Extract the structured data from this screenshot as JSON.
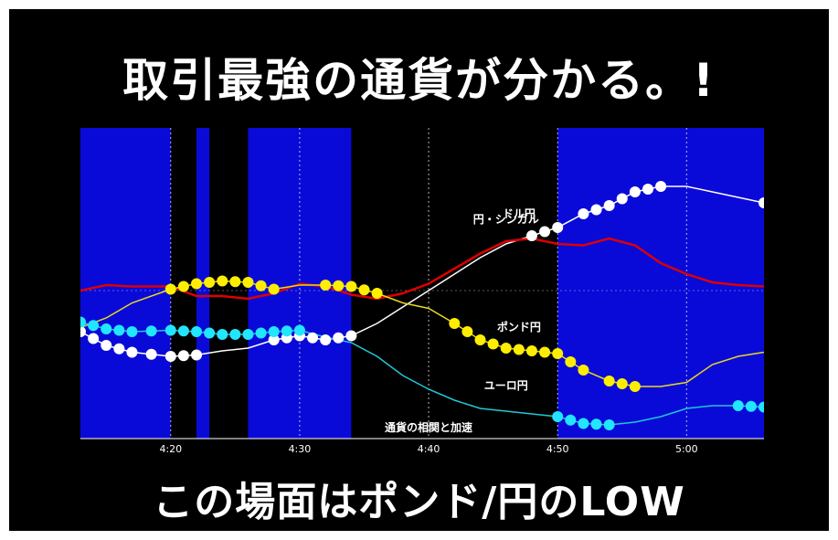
{
  "headline_top": "取引最強の通貨が分かる。!",
  "headline_bottom": "この場面はポンド/円のLOW",
  "colors": {
    "background": "#000000",
    "highlight": "#0a0ad8",
    "usdjpy": "#ffffff",
    "sgdjpy": "#dd0000",
    "gbpjpy": "#e8d820",
    "eurjpy": "#20c8d8",
    "marker_usdjpy": "#ffffff",
    "marker_gbpjpy": "#ffee00",
    "marker_eurjpy": "#22e5ff"
  },
  "chart_data": {
    "type": "line",
    "annotation": "通貨の相関と加速",
    "x_ticks": [
      "4:20",
      "4:30",
      "4:40",
      "4:50",
      "5:00"
    ],
    "xlim": [
      "4:13",
      "5:06"
    ],
    "y_axis": "unlabeled",
    "highlight_ranges": [
      [
        "4:13",
        "4:20"
      ],
      [
        "4:22",
        "4:23"
      ],
      [
        "4:26",
        "4:34"
      ],
      [
        "4:50",
        "5:06"
      ]
    ],
    "series": [
      {
        "name": "ドル円",
        "color": "#ffffff",
        "x": [
          "4:13",
          "4:15",
          "4:17",
          "4:20",
          "4:22",
          "4:24",
          "4:26",
          "4:28",
          "4:30",
          "4:32",
          "4:34",
          "4:36",
          "4:38",
          "4:40",
          "4:42",
          "4:44",
          "4:46",
          "4:48",
          "4:50",
          "4:52",
          "4:54",
          "4:56",
          "4:58",
          "5:00",
          "5:02",
          "5:04",
          "5:06"
        ],
        "y": [
          -0.3,
          -0.4,
          -0.45,
          -0.48,
          -0.47,
          -0.44,
          -0.42,
          -0.36,
          -0.33,
          -0.36,
          -0.33,
          -0.24,
          -0.12,
          0.0,
          0.12,
          0.24,
          0.34,
          0.4,
          0.46,
          0.56,
          0.62,
          0.72,
          0.76,
          0.76,
          0.72,
          0.68,
          0.64
        ],
        "markers": [
          [
            0,
            4
          ],
          [
            7,
            10
          ],
          [
            17,
            18
          ],
          [
            19,
            22
          ],
          [
            26,
            26
          ]
        ]
      },
      {
        "name": "円・シンガル",
        "color": "#dd0000",
        "x": [
          "4:13",
          "4:15",
          "4:17",
          "4:20",
          "4:22",
          "4:24",
          "4:26",
          "4:28",
          "4:30",
          "4:32",
          "4:34",
          "4:36",
          "4:38",
          "4:40",
          "4:42",
          "4:44",
          "4:46",
          "4:48",
          "4:50",
          "4:52",
          "4:54",
          "4:56",
          "4:58",
          "5:00",
          "5:02",
          "5:04",
          "5:06"
        ],
        "y": [
          0.0,
          0.04,
          0.03,
          0.03,
          -0.04,
          -0.04,
          -0.06,
          -0.02,
          0.05,
          0.03,
          -0.03,
          -0.06,
          -0.02,
          0.05,
          0.16,
          0.27,
          0.36,
          0.38,
          0.34,
          0.33,
          0.38,
          0.33,
          0.2,
          0.12,
          0.06,
          0.04,
          0.03
        ],
        "markers": []
      },
      {
        "name": "ポンド円",
        "color": "#e8d820",
        "x": [
          "4:13",
          "4:15",
          "4:17",
          "4:20",
          "4:22",
          "4:24",
          "4:26",
          "4:28",
          "4:30",
          "4:32",
          "4:34",
          "4:36",
          "4:38",
          "4:40",
          "4:42",
          "4:44",
          "4:46",
          "4:48",
          "4:50",
          "4:52",
          "4:54",
          "4:56",
          "4:58",
          "5:00",
          "5:02",
          "5:04",
          "5:06"
        ],
        "y": [
          -0.27,
          -0.2,
          -0.09,
          0.01,
          0.05,
          0.07,
          0.06,
          0.01,
          0.04,
          0.04,
          0.03,
          -0.02,
          -0.09,
          -0.13,
          -0.24,
          -0.36,
          -0.42,
          -0.44,
          -0.46,
          -0.58,
          -0.66,
          -0.7,
          -0.7,
          -0.67,
          -0.54,
          -0.48,
          -0.45
        ],
        "markers": [
          [
            3,
            7
          ],
          [
            9,
            11
          ],
          [
            14,
            19
          ],
          [
            20,
            21
          ]
        ]
      },
      {
        "name": "ユーロ円",
        "color": "#20c8d8",
        "x": [
          "4:13",
          "4:15",
          "4:17",
          "4:20",
          "4:22",
          "4:24",
          "4:26",
          "4:28",
          "4:30",
          "4:32",
          "4:34",
          "4:36",
          "4:38",
          "4:40",
          "4:42",
          "4:44",
          "4:46",
          "4:48",
          "4:50",
          "4:52",
          "4:54",
          "4:56",
          "4:58",
          "5:00",
          "5:02",
          "5:04",
          "5:06"
        ],
        "y": [
          -0.23,
          -0.28,
          -0.3,
          -0.29,
          -0.3,
          -0.32,
          -0.32,
          -0.3,
          -0.29,
          -0.34,
          -0.38,
          -0.48,
          -0.62,
          -0.72,
          -0.8,
          -0.86,
          -0.88,
          -0.9,
          -0.92,
          -0.97,
          -0.98,
          -0.96,
          -0.92,
          -0.86,
          -0.84,
          -0.84,
          -0.85
        ],
        "markers": [
          [
            0,
            8
          ],
          [
            18,
            20
          ],
          [
            25,
            26
          ]
        ]
      }
    ],
    "series_label_positions": {
      "ドル円": "4:47",
      "円・シンガル": "4:46",
      "ポンド円": "4:47",
      "ユーロ円": "4:46"
    }
  }
}
